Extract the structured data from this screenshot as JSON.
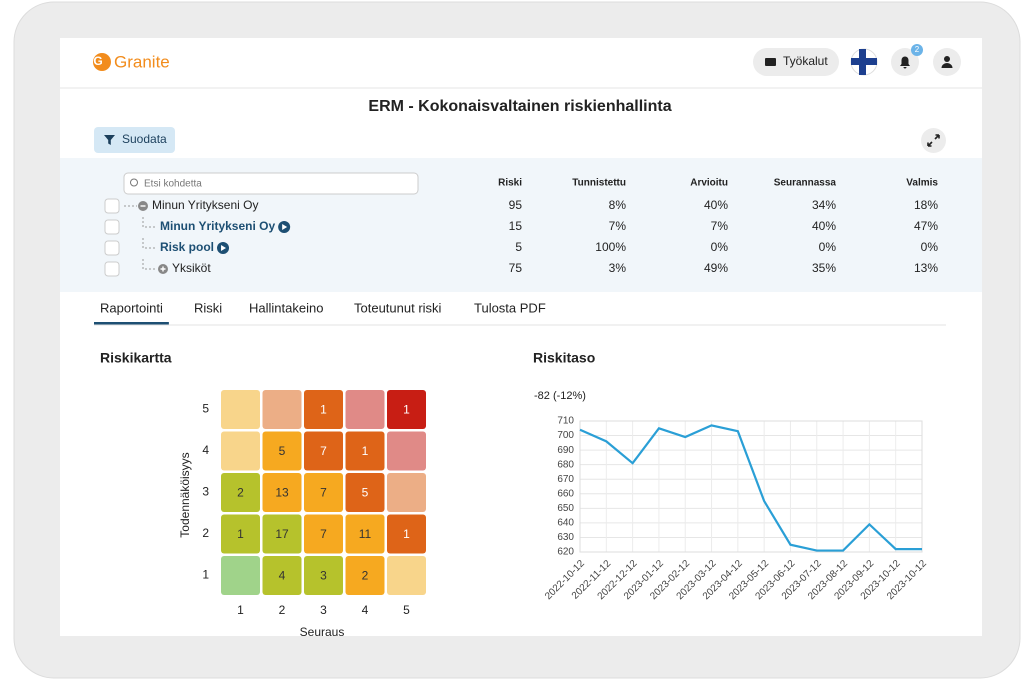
{
  "header": {
    "logo": "Granite",
    "tools": "Työkalut",
    "notifications": "2"
  },
  "page": {
    "title": "ERM - Kokonaisvaltainen riskienhallinta",
    "filter": "Suodata",
    "search_placeholder": "Etsi kohdetta"
  },
  "table": {
    "columns": [
      "Riski",
      "Tunnistettu",
      "Arvioitu",
      "Seurannassa",
      "Valmis"
    ],
    "rows": [
      {
        "name": "Minun Yritykseni Oy",
        "cells": [
          "95",
          "8%",
          "40%",
          "34%",
          "18%"
        ]
      },
      {
        "name": "Minun Yritykseni Oy",
        "cells": [
          "15",
          "7%",
          "7%",
          "40%",
          "47%"
        ]
      },
      {
        "name": "Risk pool",
        "cells": [
          "5",
          "100%",
          "0%",
          "0%",
          "0%"
        ]
      },
      {
        "name": "Yksiköt",
        "cells": [
          "75",
          "3%",
          "49%",
          "35%",
          "13%"
        ]
      }
    ]
  },
  "tabs": [
    "Raportointi",
    "Riski",
    "Hallintakeino",
    "Toteutunut riski",
    "Tulosta PDF"
  ],
  "chart_data": [
    {
      "type": "heatmap",
      "title": "Riskikartta",
      "x_label": "Seuraus",
      "y_label": "Todennäköisyys",
      "categories": [
        1,
        2,
        3,
        4,
        5
      ],
      "y_categories": [
        5,
        4,
        3,
        2,
        1
      ],
      "values": [
        [
          null,
          null,
          1,
          null,
          1
        ],
        [
          null,
          5,
          7,
          1,
          null
        ],
        [
          2,
          13,
          7,
          5,
          null
        ],
        [
          1,
          17,
          7,
          11,
          1
        ],
        [
          null,
          4,
          3,
          2,
          null
        ]
      ],
      "colors": [
        [
          "#f8d58b",
          "#ecae86",
          "#de6418",
          "#e08a87",
          "#c81e14"
        ],
        [
          "#f8d58b",
          "#f6a920",
          "#de6418",
          "#de6418",
          "#e08a87"
        ],
        [
          "#b6c22c",
          "#f6a920",
          "#f6a920",
          "#de6418",
          "#ecae86"
        ],
        [
          "#b6c22c",
          "#b6c22c",
          "#f6a920",
          "#f6a920",
          "#de6418"
        ],
        [
          "#a0d38a",
          "#b6c22c",
          "#b6c22c",
          "#f6a920",
          "#f8d58b"
        ]
      ]
    },
    {
      "type": "line",
      "title": "Riskitaso",
      "annotation": "-82 (-12%)",
      "x": [
        "2022-10-12",
        "2022-11-12",
        "2022-12-12",
        "2023-01-12",
        "2023-02-12",
        "2023-03-12",
        "2023-04-12",
        "2023-05-12",
        "2023-06-12",
        "2023-07-12",
        "2023-08-12",
        "2023-09-12",
        "2023-10-12",
        "2023-10-12"
      ],
      "values": [
        704,
        696,
        681,
        705,
        699,
        707,
        703,
        655,
        625,
        621,
        621,
        639,
        622,
        622
      ],
      "color": "#2a9fd6",
      "ylim": [
        620,
        710
      ],
      "yticks": [
        620,
        630,
        640,
        650,
        660,
        670,
        680,
        690,
        700,
        710
      ],
      "grid": true
    }
  ]
}
